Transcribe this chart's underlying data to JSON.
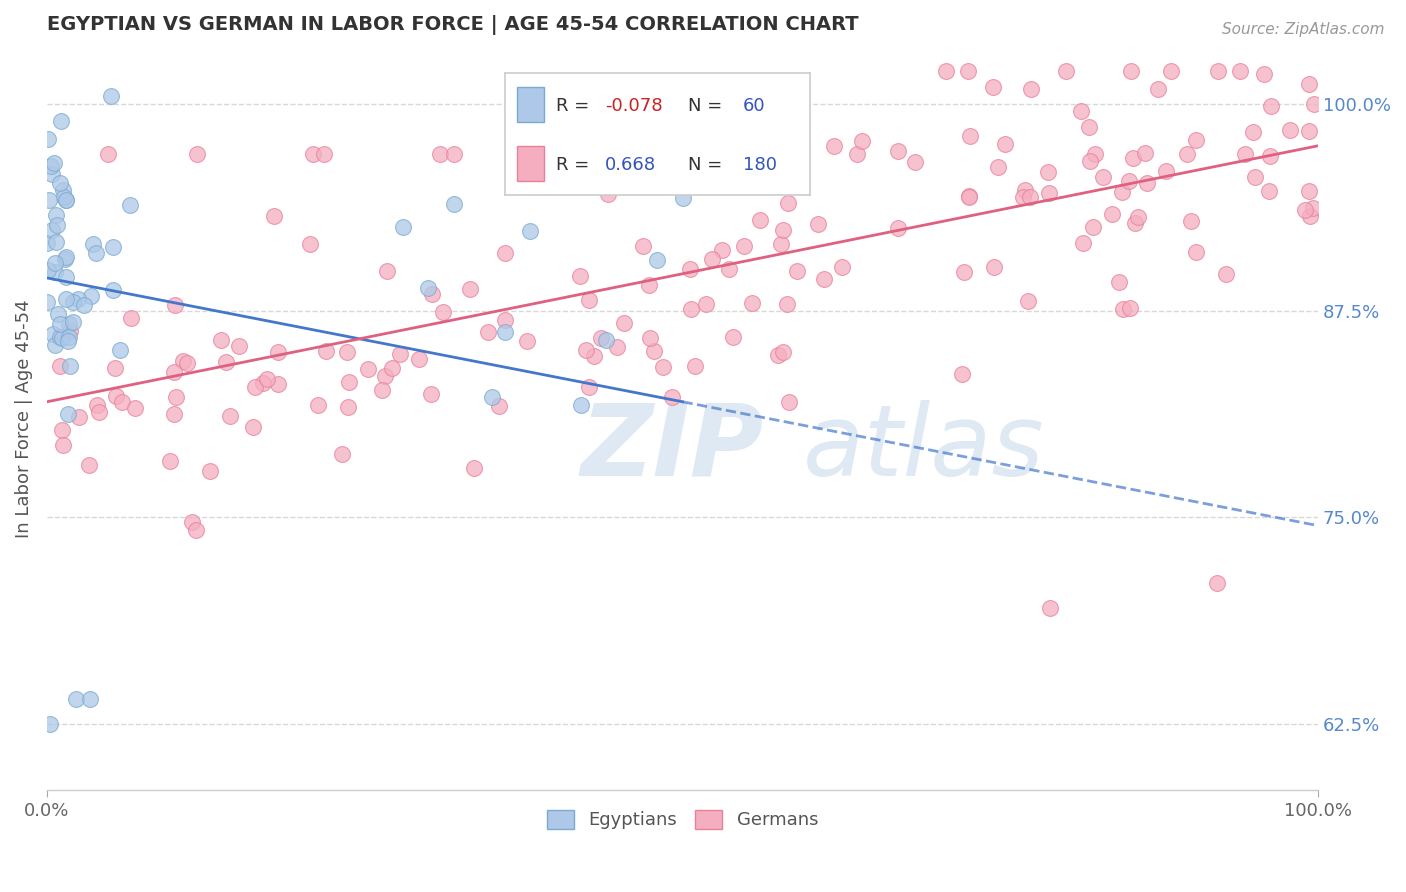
{
  "title": "EGYPTIAN VS GERMAN IN LABOR FORCE | AGE 45-54 CORRELATION CHART",
  "source_text": "Source: ZipAtlas.com",
  "ylabel": "In Labor Force | Age 45-54",
  "xlim": [
    0.0,
    1.0
  ],
  "ylim": [
    0.585,
    1.035
  ],
  "right_yticks": [
    0.625,
    0.75,
    0.875,
    1.0
  ],
  "right_yticklabels": [
    "62.5%",
    "75.0%",
    "87.5%",
    "100.0%"
  ],
  "xticks": [
    0.0,
    1.0
  ],
  "xticklabels": [
    "0.0%",
    "100.0%"
  ],
  "egyptian_R": -0.078,
  "egyptian_N": 60,
  "german_R": 0.668,
  "german_N": 180,
  "egyptian_scatter_color": "#adc8e8",
  "german_scatter_color": "#f5aec0",
  "egyptian_edge_color": "#7aaad0",
  "german_edge_color": "#e8809a",
  "egyptian_trend_color": "#4477cc",
  "german_trend_color": "#e06080",
  "bg_color": "#ffffff",
  "grid_color": "#d8d8d8",
  "title_color": "#333333",
  "watermark_color": "#c0d4e8",
  "legend_label_1": "Egyptians",
  "legend_label_2": "Germans",
  "seed": 77
}
